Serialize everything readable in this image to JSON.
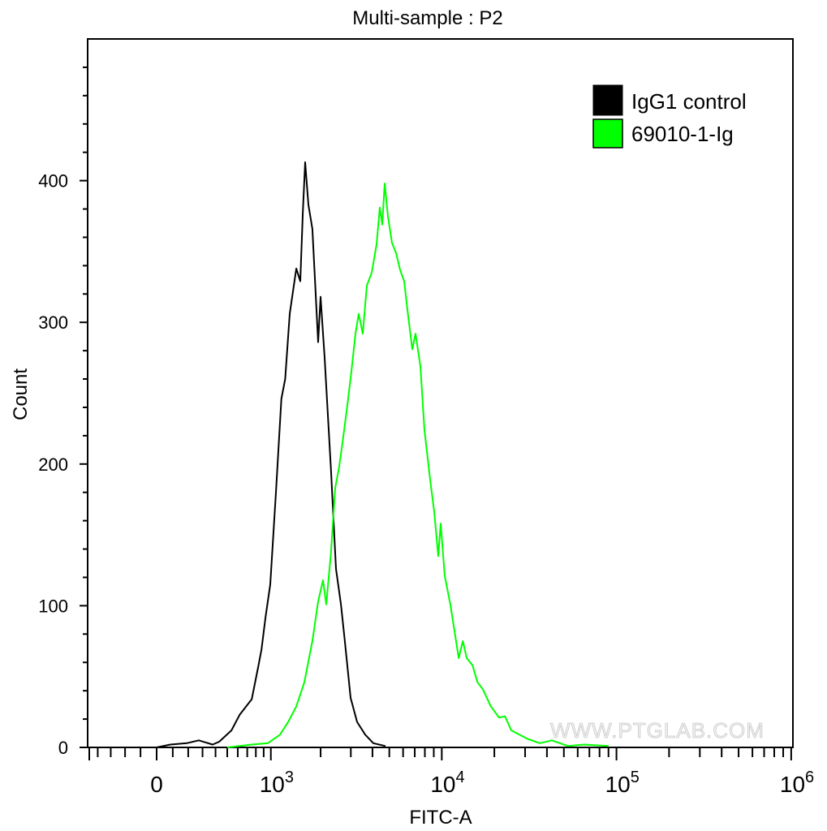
{
  "chart_data": {
    "type": "line",
    "title": "Multi-sample : P2",
    "xlabel": "FITC-A",
    "ylabel": "Count",
    "x_scale": "biexponential",
    "xlim": [
      -480,
      1000000
    ],
    "ylim": [
      0,
      500
    ],
    "grid": false,
    "legend_position": "top-right",
    "x_ticks": [
      {
        "value": 0,
        "base": "0",
        "exp": ""
      },
      {
        "value": 1000,
        "base": "10",
        "exp": "3"
      },
      {
        "value": 10000,
        "base": "10",
        "exp": "4"
      },
      {
        "value": 100000,
        "base": "10",
        "exp": "5"
      },
      {
        "value": 1000000,
        "base": "10",
        "exp": "6"
      }
    ],
    "y_ticks": [
      {
        "value": 0,
        "label": "0"
      },
      {
        "value": 100,
        "label": "100"
      },
      {
        "value": 200,
        "label": "200"
      },
      {
        "value": 300,
        "label": "300"
      },
      {
        "value": 400,
        "label": "400"
      }
    ],
    "series": [
      {
        "name": "IgG1 control",
        "color": "#000000",
        "x": [
          0,
          85,
          190,
          273,
          377,
          430,
          539,
          619,
          751,
          830,
          871,
          925,
          992,
          1074,
          1163,
          1228,
          1308,
          1434,
          1515,
          1568,
          1620,
          1694,
          1789,
          1933,
          1998,
          2111,
          2302,
          2461,
          2628,
          2770,
          2990,
          3261,
          3634,
          4047,
          4754
        ],
        "y": [
          0,
          2,
          3,
          5,
          2,
          4,
          12,
          23,
          34,
          57,
          69,
          92,
          115,
          178,
          246,
          260,
          306,
          338,
          329,
          377,
          413,
          383,
          366,
          286,
          318,
          275,
          195,
          126,
          101,
          75,
          35,
          18,
          9,
          3,
          1
        ]
      },
      {
        "name": "69010-1-Ig",
        "color": "#00ff00",
        "x": [
          500,
          751,
          957,
          1141,
          1280,
          1434,
          1603,
          1789,
          1933,
          2066,
          2158,
          2302,
          2434,
          2568,
          2684,
          2862,
          3025,
          3190,
          3333,
          3517,
          3712,
          3959,
          4223,
          4408,
          4553,
          4703,
          4909,
          5182,
          5466,
          5769,
          6086,
          6355,
          6775,
          7072,
          7542,
          7955,
          8575,
          9058,
          9550,
          9855,
          10400,
          11200,
          11800,
          12500,
          13200,
          13900,
          15000,
          16000,
          17200,
          19100,
          21300,
          23000,
          25000,
          27800,
          31000,
          36400,
          42700,
          52800,
          65400,
          90100
        ],
        "y": [
          0,
          2,
          3,
          9,
          18,
          29,
          46,
          75,
          103,
          118,
          101,
          138,
          183,
          198,
          215,
          241,
          266,
          292,
          306,
          292,
          326,
          335,
          355,
          381,
          369,
          398,
          375,
          356,
          349,
          337,
          329,
          309,
          281,
          292,
          269,
          224,
          189,
          166,
          135,
          158,
          121,
          101,
          83,
          63,
          75,
          63,
          58,
          46,
          41,
          29,
          21,
          22,
          12,
          9,
          6,
          3,
          5,
          1,
          2,
          1
        ]
      }
    ],
    "watermark": "WWW.PTGLAB.COM"
  }
}
